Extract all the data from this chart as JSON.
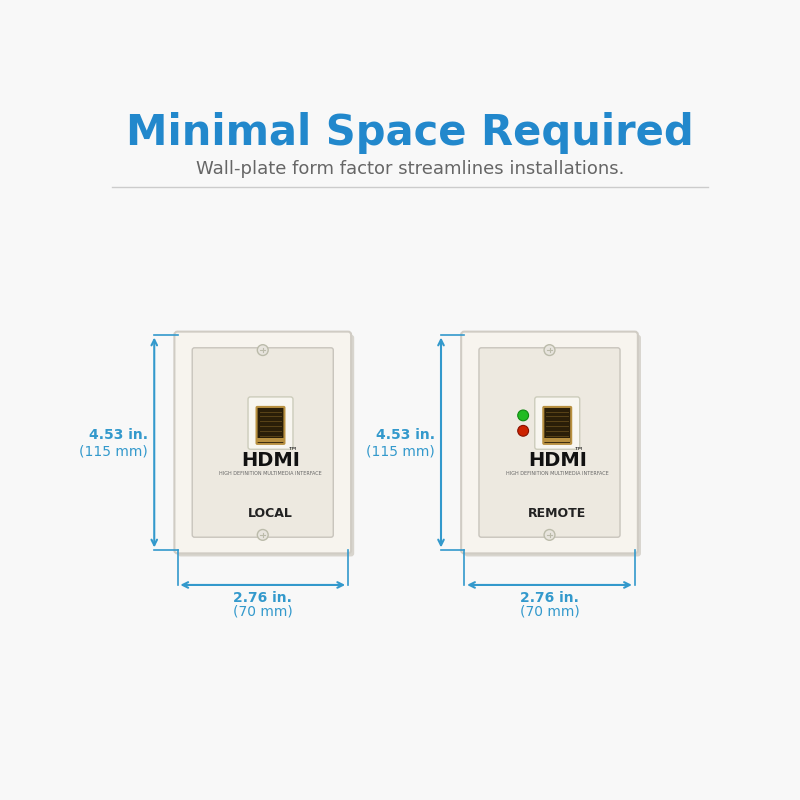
{
  "title": "Minimal Space Required",
  "subtitle": "Wall-plate form factor streamlines installations.",
  "bg_color": "#f8f8f8",
  "title_color": "#2288cc",
  "subtitle_color": "#666666",
  "arrow_color": "#3399cc",
  "plate_color": "#f7f4ee",
  "plate_shadow_color": "#d8d5ce",
  "inner_rect_color": "#ede9e0",
  "inner_border_color": "#c8c4bc",
  "hdmi_port_dark": "#2a1e08",
  "hdmi_port_gold": "#b89040",
  "hdmi_surround_color": "#f5f2eb",
  "label_local": "LOCAL",
  "label_remote": "REMOTE",
  "dim_height_in": "4.53 in.",
  "dim_height_mm": "(115 mm)",
  "dim_width_in": "2.76 in.",
  "dim_width_mm": "(70 mm)",
  "separator_color": "#cccccc",
  "screw_color": "#e8e5de",
  "screw_edge_color": "#bbbbaa",
  "green_led": "#22bb22",
  "red_led": "#cc2200",
  "hdmi_text_color": "#111111",
  "hdmi_sub_color": "#555555",
  "label_color": "#222222"
}
